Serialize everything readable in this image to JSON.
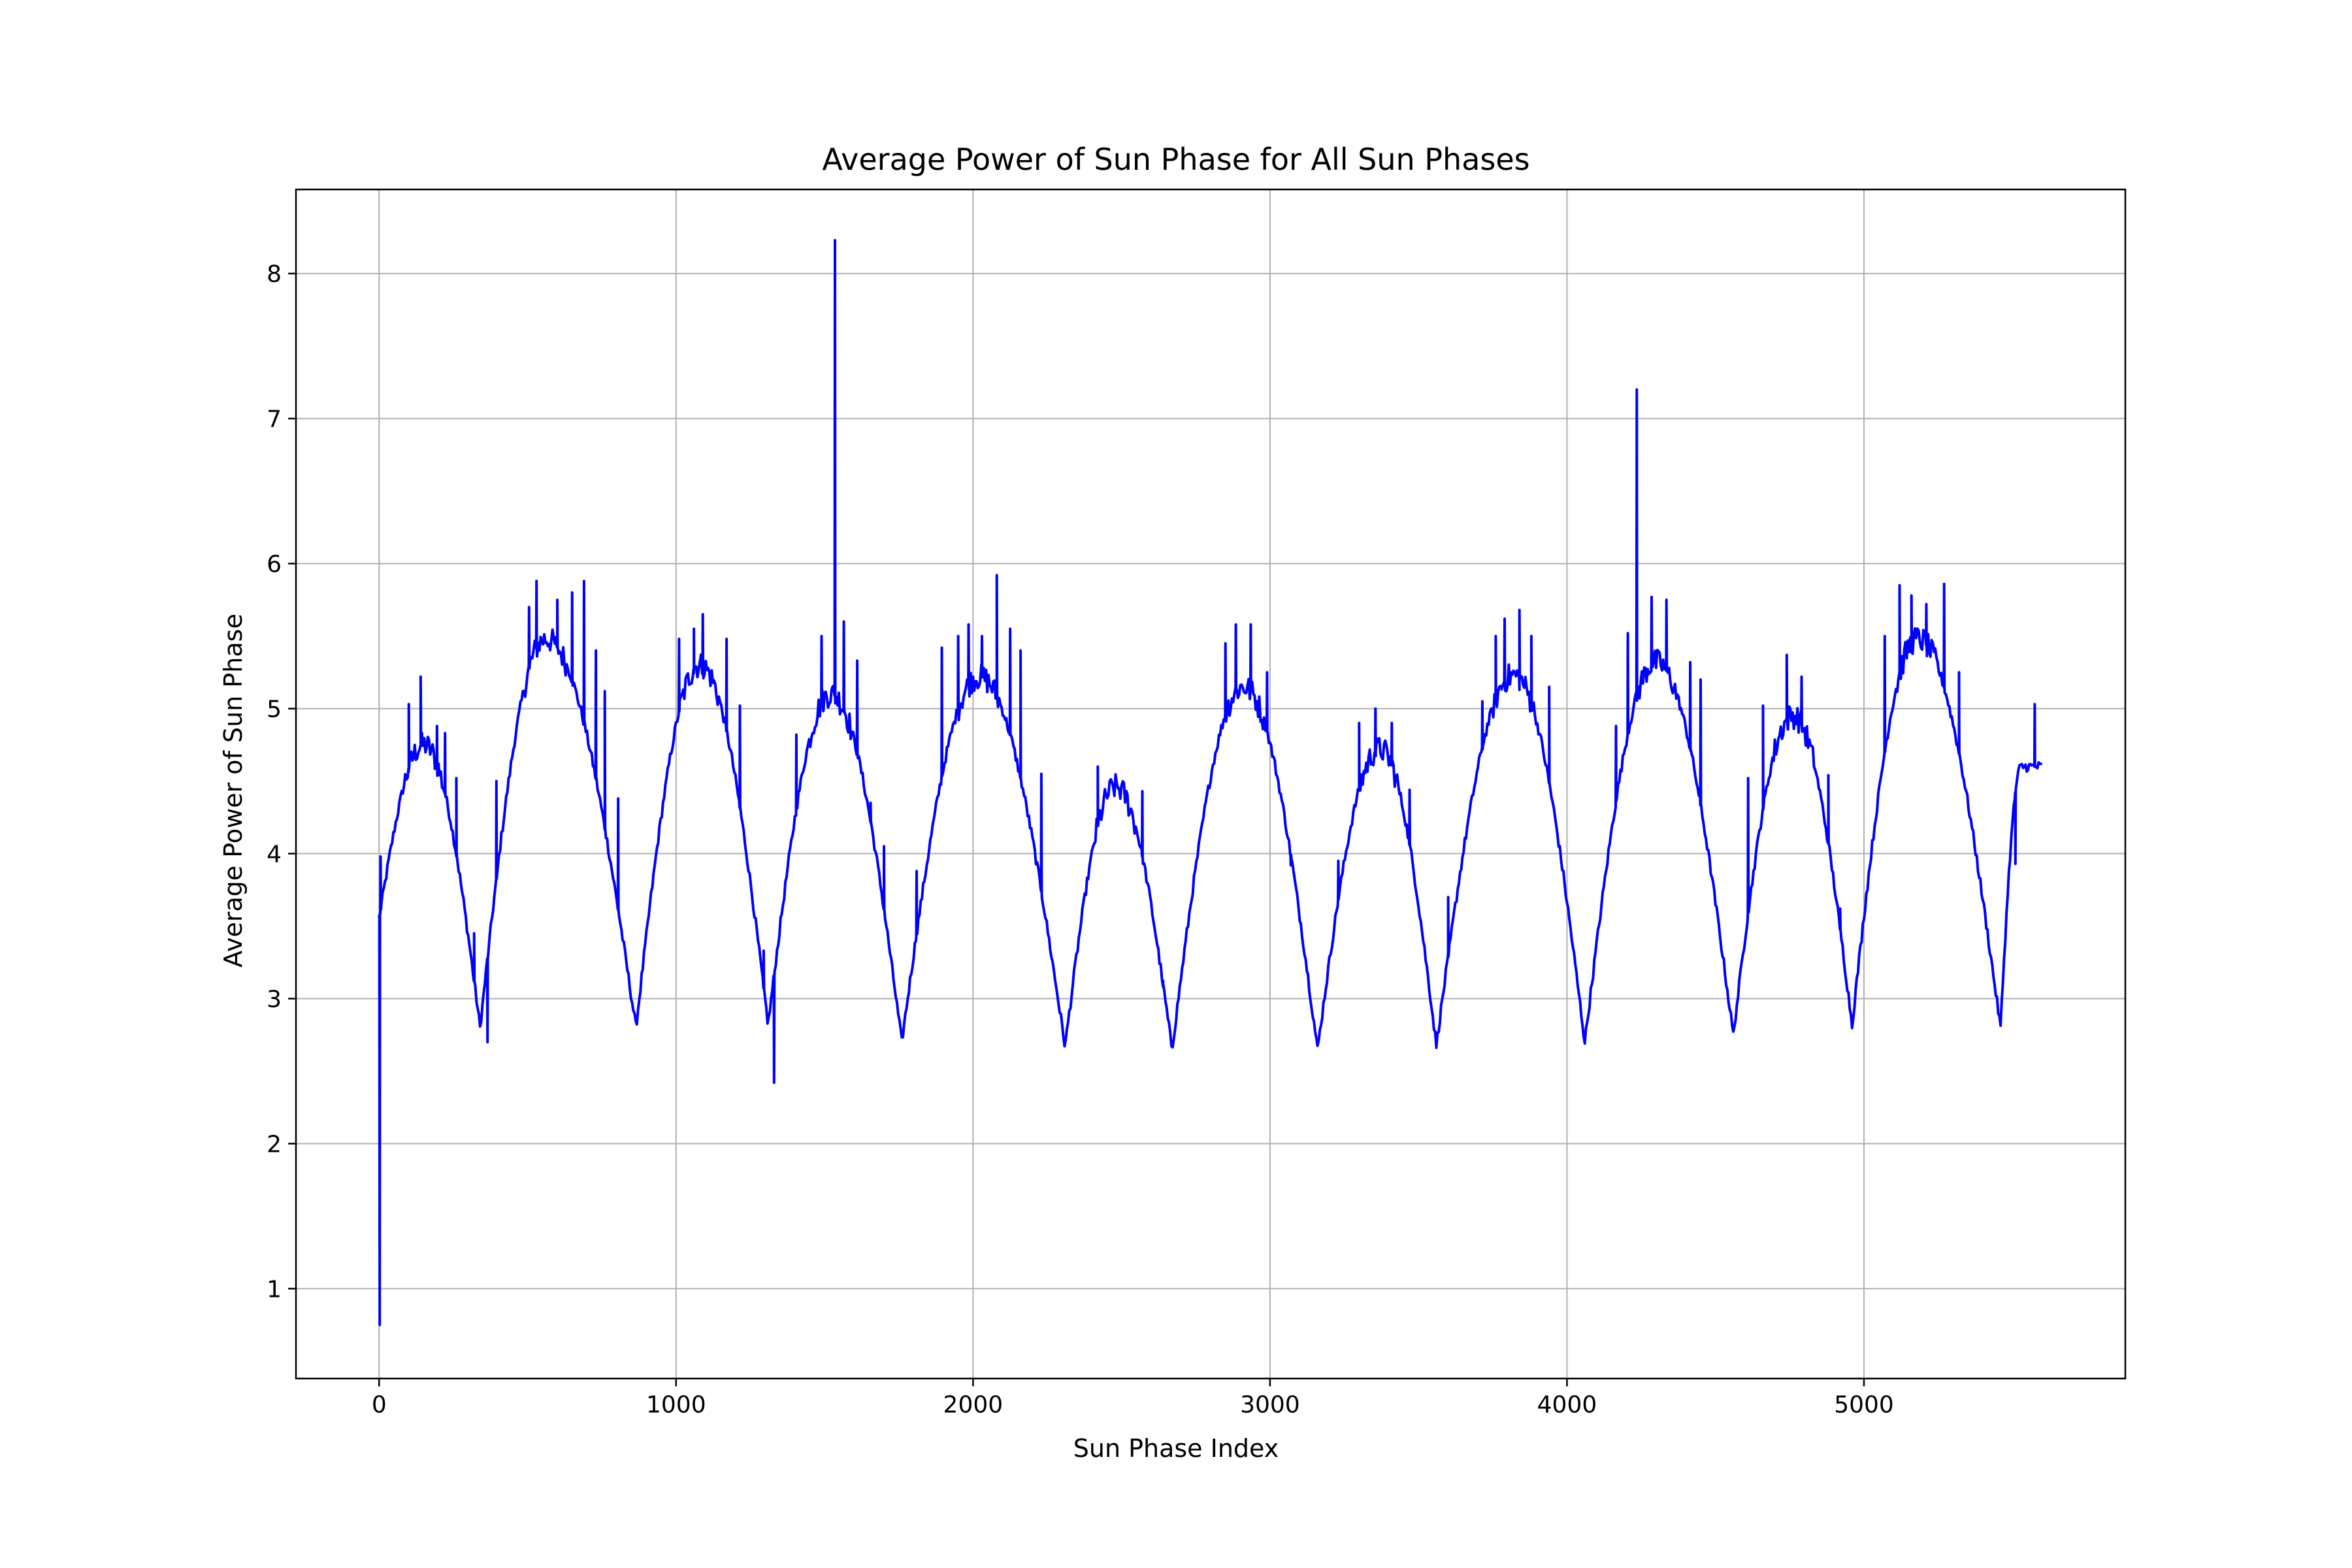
{
  "chart_data": {
    "type": "line",
    "title": "Average Power of Sun Phase for All Sun Phases",
    "xlabel": "Sun Phase Index",
    "ylabel": "Average Power of Sun Phase",
    "xlim": [
      -280,
      5880
    ],
    "ylim": [
      0.38,
      8.58
    ],
    "x_ticks": [
      0,
      1000,
      2000,
      3000,
      4000,
      5000
    ],
    "y_ticks": [
      1,
      2,
      3,
      4,
      5,
      6,
      7,
      8
    ],
    "grid": true,
    "legend": "none",
    "series": [
      {
        "color": "#0000ff",
        "x_start": 0,
        "x_end": 5600,
        "x_step": 4,
        "envelope": {
          "minima": [
            [
              0,
              3.55
            ],
            [
              340,
              2.8
            ],
            [
              865,
              2.8
            ],
            [
              1310,
              2.82
            ],
            [
              1760,
              2.7
            ],
            [
              2310,
              2.67
            ],
            [
              2670,
              2.65
            ],
            [
              3160,
              2.65
            ],
            [
              3560,
              2.68
            ],
            [
              4060,
              2.7
            ],
            [
              4560,
              2.75
            ],
            [
              4960,
              2.82
            ],
            [
              5460,
              2.8
            ],
            [
              5600,
              4.6
            ]
          ],
          "maxima": [
            [
              150,
              4.75
            ],
            [
              560,
              5.48
            ],
            [
              1080,
              5.3
            ],
            [
              1520,
              5.1
            ],
            [
              2020,
              5.22
            ],
            [
              2480,
              4.46
            ],
            [
              2910,
              5.15
            ],
            [
              3370,
              4.72
            ],
            [
              3820,
              5.23
            ],
            [
              4300,
              5.32
            ],
            [
              4760,
              4.95
            ],
            [
              5180,
              5.48
            ]
          ]
        },
        "spikes": [
          [
            2,
            0.75
          ],
          [
            5,
            3.98
          ],
          [
            100,
            5.03
          ],
          [
            140,
            5.22
          ],
          [
            195,
            4.88
          ],
          [
            222,
            4.83
          ],
          [
            260,
            4.52
          ],
          [
            320,
            3.45
          ],
          [
            365,
            2.7
          ],
          [
            395,
            4.5
          ],
          [
            505,
            5.7
          ],
          [
            530,
            5.88
          ],
          [
            600,
            5.75
          ],
          [
            650,
            5.8
          ],
          [
            690,
            5.88
          ],
          [
            730,
            5.4
          ],
          [
            760,
            5.12
          ],
          [
            805,
            4.38
          ],
          [
            1010,
            5.48
          ],
          [
            1060,
            5.55
          ],
          [
            1090,
            5.65
          ],
          [
            1170,
            5.48
          ],
          [
            1215,
            5.02
          ],
          [
            1330,
            2.42
          ],
          [
            1295,
            3.33
          ],
          [
            1405,
            4.82
          ],
          [
            1490,
            5.5
          ],
          [
            1535,
            8.23
          ],
          [
            1565,
            5.6
          ],
          [
            1610,
            5.33
          ],
          [
            1655,
            4.35
          ],
          [
            1700,
            4.05
          ],
          [
            1810,
            3.88
          ],
          [
            1895,
            5.42
          ],
          [
            1950,
            5.5
          ],
          [
            1985,
            5.58
          ],
          [
            2030,
            5.5
          ],
          [
            2080,
            5.92
          ],
          [
            2125,
            5.55
          ],
          [
            2160,
            5.4
          ],
          [
            2230,
            4.55
          ],
          [
            2420,
            4.6
          ],
          [
            2570,
            4.43
          ],
          [
            2640,
            3.08
          ],
          [
            2850,
            5.45
          ],
          [
            2885,
            5.58
          ],
          [
            2935,
            5.58
          ],
          [
            2990,
            5.25
          ],
          [
            3070,
            3.92
          ],
          [
            3230,
            3.95
          ],
          [
            3300,
            4.9
          ],
          [
            3355,
            5.0
          ],
          [
            3410,
            4.9
          ],
          [
            3470,
            4.44
          ],
          [
            3600,
            3.7
          ],
          [
            3715,
            5.05
          ],
          [
            3760,
            5.5
          ],
          [
            3790,
            5.62
          ],
          [
            3840,
            5.68
          ],
          [
            3880,
            5.5
          ],
          [
            3940,
            5.15
          ],
          [
            4165,
            4.88
          ],
          [
            4205,
            5.52
          ],
          [
            4235,
            7.2
          ],
          [
            4285,
            5.77
          ],
          [
            4335,
            5.75
          ],
          [
            4415,
            5.32
          ],
          [
            4450,
            5.2
          ],
          [
            4610,
            4.52
          ],
          [
            4660,
            5.02
          ],
          [
            4740,
            5.37
          ],
          [
            4790,
            5.22
          ],
          [
            4880,
            4.54
          ],
          [
            4920,
            3.62
          ],
          [
            5070,
            5.5
          ],
          [
            5120,
            5.85
          ],
          [
            5160,
            5.78
          ],
          [
            5210,
            5.72
          ],
          [
            5270,
            5.86
          ],
          [
            5320,
            5.25
          ],
          [
            5510,
            3.93
          ],
          [
            5575,
            5.03
          ]
        ]
      }
    ]
  }
}
